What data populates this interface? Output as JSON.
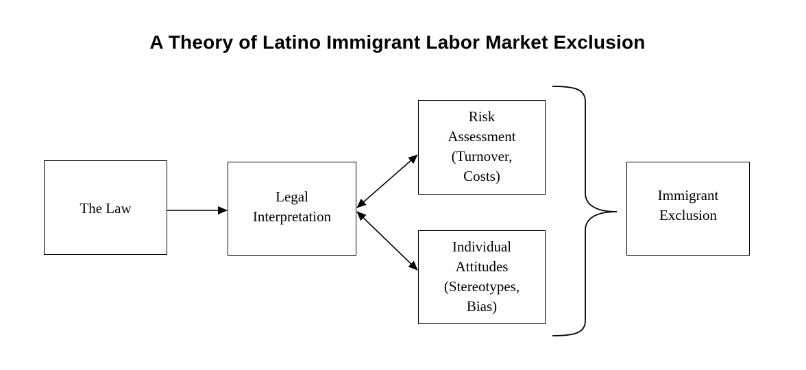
{
  "diagram": {
    "title": "A Theory of Latino Immigrant Labor Market Exclusion",
    "nodes": {
      "law": "The Law",
      "legal_interpretation": "Legal\nInterpretation",
      "risk_assessment": "Risk\nAssessment\n(Turnover,\nCosts)",
      "individual_attitudes": "Individual\nAttitudes\n(Stereotypes,\nBias)",
      "immigrant_exclusion": "Immigrant\nExclusion"
    },
    "edges": [
      {
        "from": "The Law",
        "to": "Legal Interpretation",
        "direction": "forward"
      },
      {
        "from": "Legal Interpretation",
        "to": "Risk Assessment",
        "direction": "bidirectional"
      },
      {
        "from": "Legal Interpretation",
        "to": "Individual Attitudes",
        "direction": "bidirectional"
      },
      {
        "from": "Risk Assessment + Individual Attitudes",
        "to": "Immigrant Exclusion",
        "direction": "brace-grouping"
      }
    ]
  }
}
